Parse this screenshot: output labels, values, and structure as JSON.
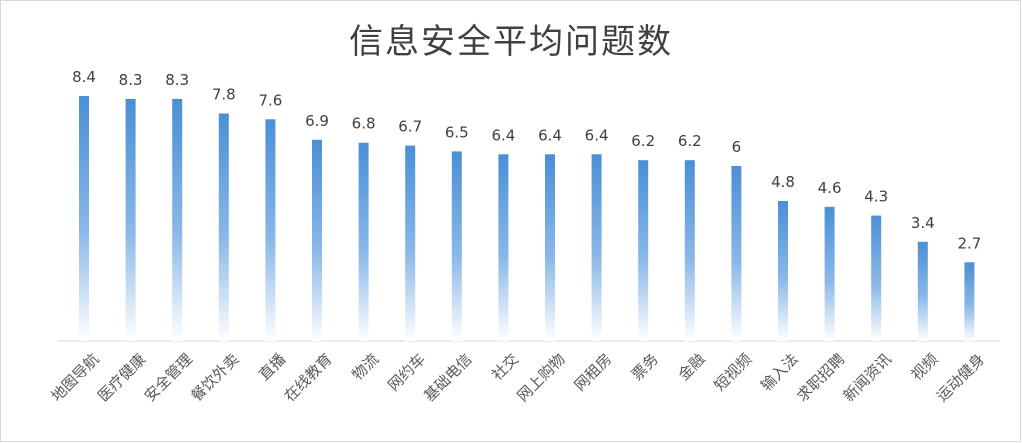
{
  "chart_data": {
    "type": "bar",
    "title": "信息安全平均问题数",
    "xlabel": "",
    "ylabel": "",
    "categories": [
      "地图导航",
      "医疗健康",
      "安全管理",
      "餐饮外卖",
      "直播",
      "在线教育",
      "物流",
      "网约车",
      "基础电信",
      "社交",
      "网上购物",
      "网租房",
      "票务",
      "金融",
      "短视频",
      "输入法",
      "求职招聘",
      "新闻资讯",
      "视频",
      "运动健身"
    ],
    "values": [
      8.4,
      8.3,
      8.3,
      7.8,
      7.6,
      6.9,
      6.8,
      6.7,
      6.5,
      6.4,
      6.4,
      6.4,
      6.2,
      6.2,
      6,
      4.8,
      4.6,
      4.3,
      3.4,
      2.7
    ],
    "value_labels": [
      "8.4",
      "8.3",
      "8.3",
      "7.8",
      "7.6",
      "6.9",
      "6.8",
      "6.7",
      "6.5",
      "6.4",
      "6.4",
      "6.4",
      "6.2",
      "6.2",
      "6",
      "4.8",
      "4.6",
      "4.3",
      "3.4",
      "2.7"
    ],
    "ylim": [
      0,
      9
    ],
    "grid": false,
    "legend": "none",
    "bar_color_top": "#4a8fd6",
    "bar_color_bottom": "#ffffff",
    "axis_color": "#d9d9d9"
  }
}
